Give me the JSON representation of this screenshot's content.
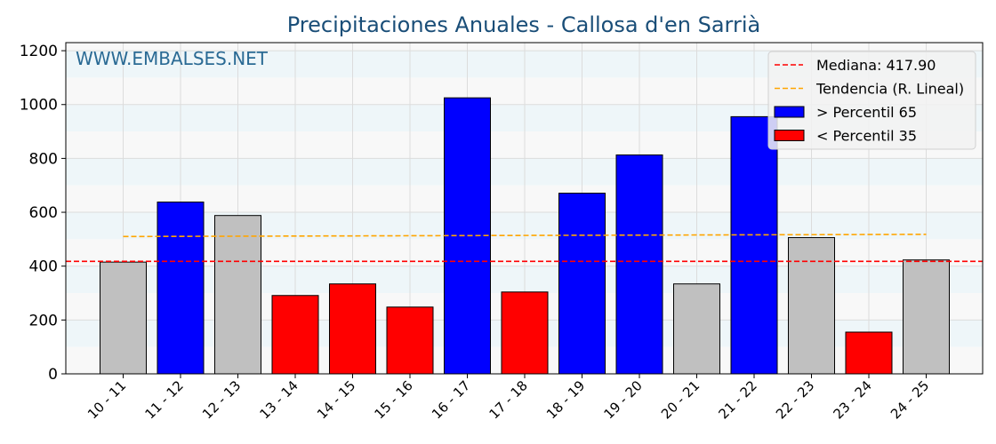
{
  "chart_data": {
    "type": "bar",
    "title": "Precipitaciones Anuales - Callosa d'en Sarrià",
    "watermark": "WWW.EMBALSES.NET",
    "xlabel": "",
    "ylabel": "",
    "ylim": [
      0,
      1230
    ],
    "yticks": [
      0,
      200,
      400,
      600,
      800,
      1000,
      1200
    ],
    "grid": true,
    "categories": [
      "10 - 11",
      "11 - 12",
      "12 - 13",
      "13 - 14",
      "14 - 15",
      "15 - 16",
      "16 - 17",
      "17 - 18",
      "18 - 19",
      "19 - 20",
      "20 - 21",
      "21 - 22",
      "22 - 23",
      "23 - 24",
      "24 - 25"
    ],
    "values": [
      415,
      638,
      588,
      291,
      334,
      248,
      1025,
      304,
      671,
      813,
      334,
      955,
      506,
      155,
      423
    ],
    "bar_class": [
      "mid",
      "high",
      "mid",
      "low",
      "low",
      "low",
      "high",
      "low",
      "high",
      "high",
      "mid",
      "high",
      "mid",
      "low",
      "mid"
    ],
    "colors": {
      "high": "#0000ff",
      "low": "#ff0000",
      "mid": "#c0c0c0",
      "median": "#ff0000",
      "trend": "#ffa500",
      "title": "#1a4e78",
      "watermark": "#2a6a94"
    },
    "median": 417.9,
    "trend": [
      510,
      518
    ],
    "legend_position": "top-right",
    "legend": [
      {
        "label": "Mediana: 417.90",
        "kind": "median"
      },
      {
        "label": "Tendencia (R. Lineal)",
        "kind": "trend"
      },
      {
        "label": " > Percentil 65",
        "kind": "high"
      },
      {
        "label": " < Percentil 35",
        "kind": "low"
      }
    ]
  }
}
